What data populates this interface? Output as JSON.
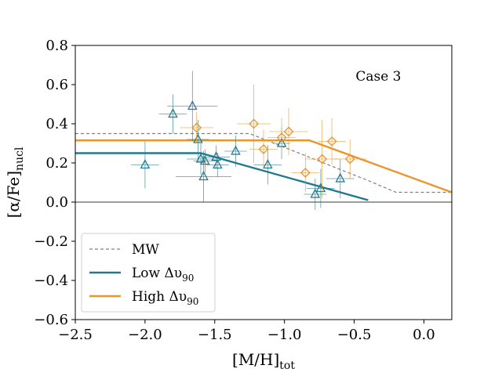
{
  "chart_data": {
    "type": "scatter",
    "annotation": "Case 3",
    "xlabel": "[M/H]",
    "xlabel_sub": "tot",
    "ylabel": "[α/Fe]",
    "ylabel_sub": "nucl",
    "xlim": [
      -2.5,
      0.2
    ],
    "ylim": [
      -0.6,
      0.8
    ],
    "xticks": [
      -2.5,
      -2.0,
      -1.5,
      -1.0,
      -0.5,
      0.0
    ],
    "xtick_labels": [
      "−2.5",
      "−2.0",
      "−1.5",
      "−1.0",
      "−0.5",
      "0.0"
    ],
    "yticks": [
      -0.6,
      -0.4,
      -0.2,
      0.0,
      0.2,
      0.4,
      0.6,
      0.8
    ],
    "ytick_labels": [
      "−0.6",
      "−0.4",
      "−0.2",
      "0.0",
      "0.2",
      "0.4",
      "0.6",
      "0.8"
    ],
    "zero_line": 0.0,
    "lines": [
      {
        "name": "MW",
        "color": "#808080",
        "dashed": true,
        "x": [
          -2.5,
          -1.25,
          -0.4,
          -0.2,
          0.2
        ],
        "y": [
          0.35,
          0.35,
          0.11,
          0.05,
          0.05
        ]
      },
      {
        "name": "Low Δυ90",
        "color": "#23798e",
        "dashed": false,
        "x": [
          -2.5,
          -1.6,
          -0.4
        ],
        "y": [
          0.25,
          0.25,
          0.01
        ]
      },
      {
        "name": "High Δυ90",
        "color": "#e8962e",
        "dashed": false,
        "x": [
          -2.5,
          -0.82,
          0.2
        ],
        "y": [
          0.315,
          0.315,
          0.05
        ]
      }
    ],
    "legend": [
      {
        "label": "MW",
        "sub": "",
        "color": "#808080",
        "dashed": true
      },
      {
        "label": "Low Δυ",
        "sub": "90",
        "color": "#23798e",
        "dashed": false
      },
      {
        "label": "High Δυ",
        "sub": "90",
        "color": "#e8962e",
        "dashed": false
      }
    ],
    "series": [
      {
        "name": "Low Δυ90",
        "marker": "triangle",
        "color": "#23798e",
        "points": [
          {
            "x": -2.0,
            "y": 0.19,
            "xerr": 0.1,
            "yerr": 0.12
          },
          {
            "x": -1.8,
            "y": 0.45,
            "xerr": 0.1,
            "yerr": 0.1
          },
          {
            "x": -1.66,
            "y": 0.49,
            "xerr": 0.18,
            "yerr": 0.18
          },
          {
            "x": -1.62,
            "y": 0.32,
            "xerr": 0.08,
            "yerr": 0.1
          },
          {
            "x": -1.6,
            "y": 0.22,
            "xerr": 0.1,
            "yerr": 0.08
          },
          {
            "x": -1.58,
            "y": 0.13,
            "xerr": 0.2,
            "yerr": 0.13
          },
          {
            "x": -1.57,
            "y": 0.21,
            "xerr": 0.08,
            "yerr": 0.06
          },
          {
            "x": -1.49,
            "y": 0.23,
            "xerr": 0.1,
            "yerr": 0.06
          },
          {
            "x": -1.48,
            "y": 0.19,
            "xerr": 0.08,
            "yerr": 0.06
          },
          {
            "x": -1.35,
            "y": 0.26,
            "xerr": 0.08,
            "yerr": 0.08
          },
          {
            "x": -1.12,
            "y": 0.19,
            "xerr": 0.1,
            "yerr": 0.1
          },
          {
            "x": -1.02,
            "y": 0.3,
            "xerr": 0.06,
            "yerr": 0.08
          },
          {
            "x": -0.78,
            "y": 0.04,
            "xerr": 0.08,
            "yerr": 0.08
          },
          {
            "x": -0.74,
            "y": 0.07,
            "xerr": 0.1,
            "yerr": 0.1
          },
          {
            "x": -0.6,
            "y": 0.12,
            "xerr": 0.1,
            "yerr": 0.1
          }
        ]
      },
      {
        "name": "High Δυ90",
        "marker": "diamond",
        "color": "#e8962e",
        "points": [
          {
            "x": -1.63,
            "y": 0.38,
            "xerr": 0.12,
            "yerr": 0.08
          },
          {
            "x": -1.22,
            "y": 0.4,
            "xerr": 0.12,
            "yerr": 0.2
          },
          {
            "x": -1.15,
            "y": 0.27,
            "xerr": 0.1,
            "yerr": 0.1
          },
          {
            "x": -1.02,
            "y": 0.33,
            "xerr": 0.1,
            "yerr": 0.1
          },
          {
            "x": -0.97,
            "y": 0.36,
            "xerr": 0.14,
            "yerr": 0.12
          },
          {
            "x": -0.85,
            "y": 0.15,
            "xerr": 0.1,
            "yerr": 0.1
          },
          {
            "x": -0.73,
            "y": 0.22,
            "xerr": 0.12,
            "yerr": 0.2
          },
          {
            "x": -0.66,
            "y": 0.31,
            "xerr": 0.1,
            "yerr": 0.12
          },
          {
            "x": -0.53,
            "y": 0.22,
            "xerr": 0.12,
            "yerr": 0.1
          }
        ]
      }
    ]
  }
}
